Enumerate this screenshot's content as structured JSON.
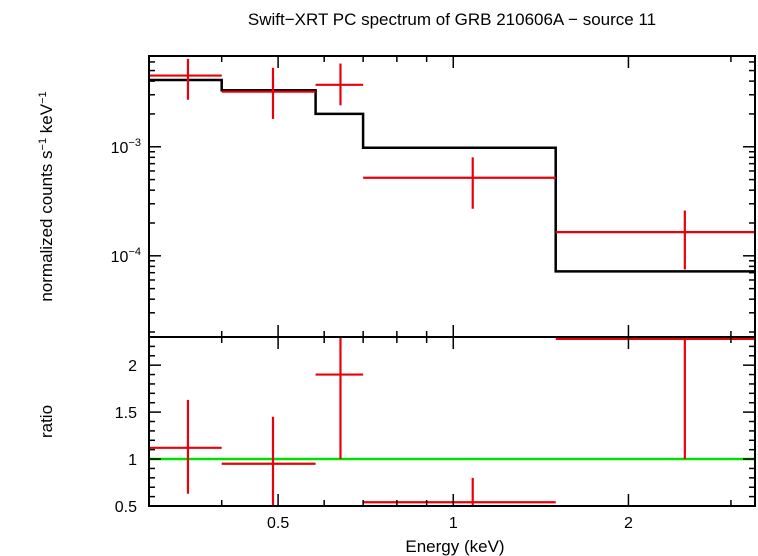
{
  "chart_data": {
    "title": "Swift−XRT PC spectrum of GRB 210606A − source 11",
    "xlabel": "Energy (keV)",
    "x_scale": "log",
    "xlim": [
      0.3,
      3.3
    ],
    "x_ticks": [
      {
        "value": 0.5,
        "label": "0.5"
      },
      {
        "value": 1,
        "label": "1"
      },
      {
        "value": 2,
        "label": "2"
      }
    ],
    "panels": [
      {
        "name": "spectrum",
        "type": "line",
        "ylabel_text": "normalized counts s",
        "ylabel_sup1": "−1",
        "ylabel_mid": " keV",
        "ylabel_sup2": "−1",
        "y_scale": "log",
        "ylim": [
          1.8e-05,
          0.0068
        ],
        "y_ticks": [
          {
            "value": 0.001,
            "base": "10",
            "exp": "−3"
          },
          {
            "value": 0.0001,
            "base": "10",
            "exp": "−4"
          }
        ],
        "data": [
          {
            "x_lo": 0.3,
            "x_hi": 0.4,
            "x": 0.35,
            "y": 0.0045,
            "y_lo": 0.0027,
            "y_hi": 0.0064
          },
          {
            "x_lo": 0.4,
            "x_hi": 0.58,
            "x": 0.49,
            "y": 0.0032,
            "y_lo": 0.0018,
            "y_hi": 0.0053
          },
          {
            "x_lo": 0.58,
            "x_hi": 0.7,
            "x": 0.64,
            "y": 0.0037,
            "y_lo": 0.0024,
            "y_hi": 0.0058
          },
          {
            "x_lo": 0.7,
            "x_hi": 1.5,
            "x": 1.08,
            "y": 0.00052,
            "y_lo": 0.00027,
            "y_hi": 0.0008
          },
          {
            "x_lo": 1.5,
            "x_hi": 3.3,
            "x": 2.5,
            "y": 0.000165,
            "y_lo": 7.5e-05,
            "y_hi": 0.00026
          }
        ],
        "model": [
          {
            "x_lo": 0.3,
            "x_hi": 0.4,
            "y": 0.0041
          },
          {
            "x_lo": 0.4,
            "x_hi": 0.58,
            "y": 0.0033
          },
          {
            "x_lo": 0.58,
            "x_hi": 0.7,
            "y": 0.002
          },
          {
            "x_lo": 0.7,
            "x_hi": 1.5,
            "y": 0.00098
          },
          {
            "x_lo": 1.5,
            "x_hi": 3.3,
            "y": 7.2e-05
          }
        ]
      },
      {
        "name": "ratio",
        "type": "scatter",
        "ylabel_text": "ratio",
        "y_scale": "linear",
        "ylim": [
          0.5,
          2.3
        ],
        "y_ticks": [
          {
            "value": 0.5,
            "label": "0.5"
          },
          {
            "value": 1,
            "label": "1"
          },
          {
            "value": 1.5,
            "label": "1.5"
          },
          {
            "value": 2,
            "label": "2"
          }
        ],
        "data": [
          {
            "x_lo": 0.3,
            "x_hi": 0.4,
            "x": 0.35,
            "y": 1.12,
            "y_lo": 0.63,
            "y_hi": 1.63
          },
          {
            "x_lo": 0.4,
            "x_hi": 0.58,
            "x": 0.49,
            "y": 0.95,
            "y_lo": 0.5,
            "y_hi": 1.45
          },
          {
            "x_lo": 0.58,
            "x_hi": 0.7,
            "x": 0.64,
            "y": 1.9,
            "y_lo": 1.0,
            "y_hi": 2.3
          },
          {
            "x_lo": 0.7,
            "x_hi": 1.5,
            "x": 1.08,
            "y": 0.54,
            "y_lo": 0.5,
            "y_hi": 0.8
          },
          {
            "x_lo": 1.5,
            "x_hi": 3.3,
            "x": 2.5,
            "y": 2.28,
            "y_lo": 1.0,
            "y_hi": 2.3
          }
        ],
        "reference_line": 1
      }
    ],
    "colors": {
      "data": "#e8000b",
      "model": "#000000",
      "reference": "#00e000",
      "axes": "#000000"
    }
  }
}
